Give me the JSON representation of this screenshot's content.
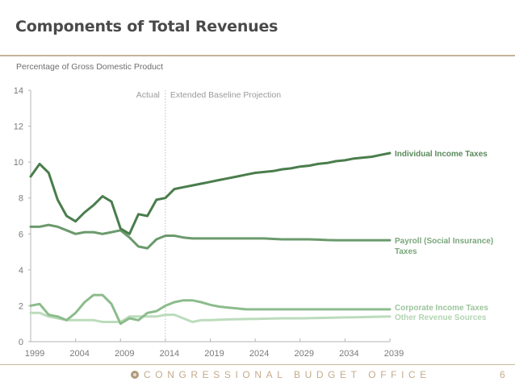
{
  "slide": {
    "title": "Components of Total Revenues",
    "footer_org": "CONGRESSIONAL BUDGET OFFICE",
    "page_number": "6",
    "colors": {
      "rule": "#c2b49b",
      "footer_text": "#c4ab8c"
    }
  },
  "chart_data": {
    "type": "line",
    "title": "Components of Total Revenues",
    "ylabel": "Percentage of Gross Domestic Product",
    "xlabel": "",
    "xlim": [
      1999,
      2039
    ],
    "ylim": [
      0,
      14
    ],
    "x_ticks": [
      1999,
      2004,
      2009,
      2014,
      2019,
      2024,
      2029,
      2034,
      2039
    ],
    "y_ticks": [
      0,
      2,
      4,
      6,
      8,
      10,
      12,
      14
    ],
    "grid": false,
    "divider": {
      "x": 2014,
      "left_label": "Actual",
      "right_label": "Extended Baseline Projection"
    },
    "x": [
      1999,
      2000,
      2001,
      2002,
      2003,
      2004,
      2005,
      2006,
      2007,
      2008,
      2009,
      2010,
      2011,
      2012,
      2013,
      2014,
      2015,
      2016,
      2017,
      2018,
      2019,
      2020,
      2021,
      2022,
      2023,
      2024,
      2025,
      2026,
      2027,
      2028,
      2029,
      2030,
      2031,
      2032,
      2033,
      2034,
      2035,
      2036,
      2037,
      2038,
      2039
    ],
    "series": [
      {
        "name": "Individual Income Taxes",
        "label_lines": [
          "Individual Income Taxes"
        ],
        "color": "#4a7d4c",
        "label_color": "#5a8a5c",
        "values": [
          9.2,
          9.9,
          9.4,
          7.9,
          7.0,
          6.7,
          7.2,
          7.6,
          8.1,
          7.8,
          6.3,
          6.0,
          7.1,
          7.0,
          7.9,
          8.0,
          8.5,
          8.6,
          8.7,
          8.8,
          8.9,
          9.0,
          9.1,
          9.2,
          9.3,
          9.4,
          9.45,
          9.5,
          9.6,
          9.65,
          9.75,
          9.8,
          9.9,
          9.95,
          10.05,
          10.1,
          10.2,
          10.25,
          10.3,
          10.4,
          10.5
        ]
      },
      {
        "name": "Payroll (Social Insurance) Taxes",
        "label_lines": [
          "Payroll (Social Insurance)",
          "Taxes"
        ],
        "color": "#6b9a6c",
        "label_color": "#7aa67b",
        "values": [
          6.4,
          6.4,
          6.5,
          6.4,
          6.2,
          6.0,
          6.1,
          6.1,
          6.0,
          6.1,
          6.2,
          5.8,
          5.3,
          5.2,
          5.7,
          5.9,
          5.9,
          5.8,
          5.75,
          5.75,
          5.75,
          5.75,
          5.75,
          5.75,
          5.75,
          5.75,
          5.75,
          5.72,
          5.7,
          5.7,
          5.7,
          5.7,
          5.68,
          5.66,
          5.65,
          5.65,
          5.65,
          5.65,
          5.65,
          5.65,
          5.65
        ]
      },
      {
        "name": "Corporate Income Taxes",
        "label_lines": [
          "Corporate Income Taxes"
        ],
        "color": "#8cbc8c",
        "label_color": "#9cc49c",
        "values": [
          2.0,
          2.1,
          1.5,
          1.4,
          1.2,
          1.6,
          2.2,
          2.6,
          2.6,
          2.1,
          1.0,
          1.3,
          1.2,
          1.6,
          1.7,
          2.0,
          2.2,
          2.3,
          2.3,
          2.2,
          2.05,
          1.95,
          1.9,
          1.85,
          1.8,
          1.8,
          1.8,
          1.8,
          1.8,
          1.8,
          1.8,
          1.8,
          1.8,
          1.8,
          1.8,
          1.8,
          1.8,
          1.8,
          1.8,
          1.8,
          1.8
        ]
      },
      {
        "name": "Other Revenue Sources",
        "label_lines": [
          "Other Revenue Sources"
        ],
        "color": "#bcdcbc",
        "label_color": "#b2d4b2",
        "values": [
          1.6,
          1.6,
          1.4,
          1.3,
          1.2,
          1.2,
          1.2,
          1.2,
          1.1,
          1.1,
          1.1,
          1.4,
          1.4,
          1.4,
          1.4,
          1.5,
          1.5,
          1.3,
          1.1,
          1.2,
          1.2,
          1.22,
          1.24,
          1.25,
          1.26,
          1.27,
          1.28,
          1.29,
          1.3,
          1.3,
          1.3,
          1.31,
          1.32,
          1.33,
          1.34,
          1.35,
          1.36,
          1.37,
          1.38,
          1.39,
          1.4
        ]
      }
    ]
  }
}
